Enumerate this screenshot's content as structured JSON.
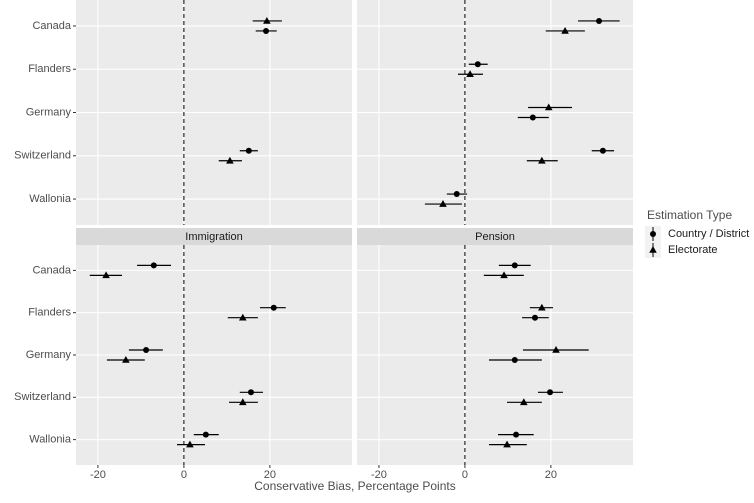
{
  "categories": [
    "Canada",
    "Flanders",
    "Germany",
    "Switzerland",
    "Wallonia"
  ],
  "shared": {
    "xlabel": "Conservative Bias, Percentage Points",
    "legend_title": "Estimation Type"
  },
  "chart_data": [
    {
      "type": "dot",
      "xlim": [
        -25.1,
        39.1
      ],
      "xticks": [
        -20,
        0,
        20
      ],
      "refline": 0,
      "grid": true,
      "panel_color": "#ebebeb",
      "series": [
        {
          "name": "Country / District",
          "marker": "circle",
          "color": "#000000",
          "values": [
            19.1,
            null,
            null,
            15.1,
            null
          ],
          "lower": [
            16.7,
            null,
            null,
            13.0,
            null
          ],
          "upper": [
            21.6,
            null,
            null,
            17.2,
            null
          ]
        },
        {
          "name": "Electorate",
          "marker": "triangle",
          "color": "#000000",
          "values": [
            19.3,
            null,
            null,
            10.7,
            null
          ],
          "lower": [
            16.0,
            null,
            null,
            8.1,
            null
          ],
          "upper": [
            22.8,
            null,
            null,
            13.5,
            null
          ]
        }
      ]
    },
    {
      "type": "dot",
      "xlim": [
        -25.1,
        39.1
      ],
      "xticks": [
        -20,
        0,
        20
      ],
      "refline": 0,
      "grid": true,
      "panel_color": "#ebebeb",
      "series": [
        {
          "name": "Country / District",
          "marker": "circle",
          "color": "#000000",
          "values": [
            31.2,
            3.0,
            15.8,
            32.1,
            -1.9
          ],
          "lower": [
            26.3,
            0.9,
            12.3,
            29.5,
            -4.2
          ],
          "upper": [
            36.0,
            5.3,
            19.5,
            34.7,
            0.5
          ]
        },
        {
          "name": "Electorate",
          "marker": "triangle",
          "color": "#000000",
          "values": [
            23.3,
            1.2,
            19.5,
            17.9,
            -5.1
          ],
          "lower": [
            18.8,
            -1.6,
            14.7,
            14.4,
            -9.3
          ],
          "upper": [
            27.9,
            4.2,
            24.9,
            21.6,
            -0.7
          ]
        }
      ]
    },
    {
      "type": "dot",
      "title": "Immigration",
      "xlim": [
        -25.1,
        39.1
      ],
      "xticks": [
        -20,
        0,
        20
      ],
      "refline": 0,
      "grid": true,
      "panel_color": "#ebebeb",
      "series": [
        {
          "name": "Country / District",
          "marker": "circle",
          "color": "#000000",
          "values": [
            -7.0,
            20.9,
            -8.8,
            15.6,
            5.1
          ],
          "lower": [
            -10.9,
            17.7,
            -12.8,
            13.0,
            2.3
          ],
          "upper": [
            -3.0,
            23.7,
            -4.9,
            18.4,
            8.1
          ]
        },
        {
          "name": "Electorate",
          "marker": "triangle",
          "color": "#000000",
          "values": [
            -18.1,
            13.7,
            -13.5,
            13.7,
            1.4
          ],
          "lower": [
            -21.9,
            10.2,
            -17.9,
            10.5,
            -1.6
          ],
          "upper": [
            -14.4,
            17.2,
            -9.1,
            17.2,
            4.9
          ]
        }
      ]
    },
    {
      "type": "dot",
      "title": "Pension",
      "xlim": [
        -25.1,
        39.1
      ],
      "xticks": [
        -20,
        0,
        20
      ],
      "refline": 0,
      "grid": true,
      "panel_color": "#ebebeb",
      "series": [
        {
          "name": "Country / District",
          "marker": "circle",
          "color": "#000000",
          "values": [
            11.6,
            16.3,
            11.6,
            19.8,
            11.9
          ],
          "lower": [
            7.9,
            13.3,
            5.6,
            17.0,
            7.7
          ],
          "upper": [
            15.3,
            19.5,
            17.9,
            22.8,
            16.0
          ]
        },
        {
          "name": "Electorate",
          "marker": "triangle",
          "color": "#000000",
          "values": [
            9.1,
            17.9,
            21.2,
            13.7,
            9.8
          ],
          "lower": [
            4.4,
            15.1,
            13.5,
            9.8,
            5.6
          ],
          "upper": [
            13.7,
            20.5,
            28.8,
            17.9,
            14.4
          ]
        }
      ]
    }
  ]
}
